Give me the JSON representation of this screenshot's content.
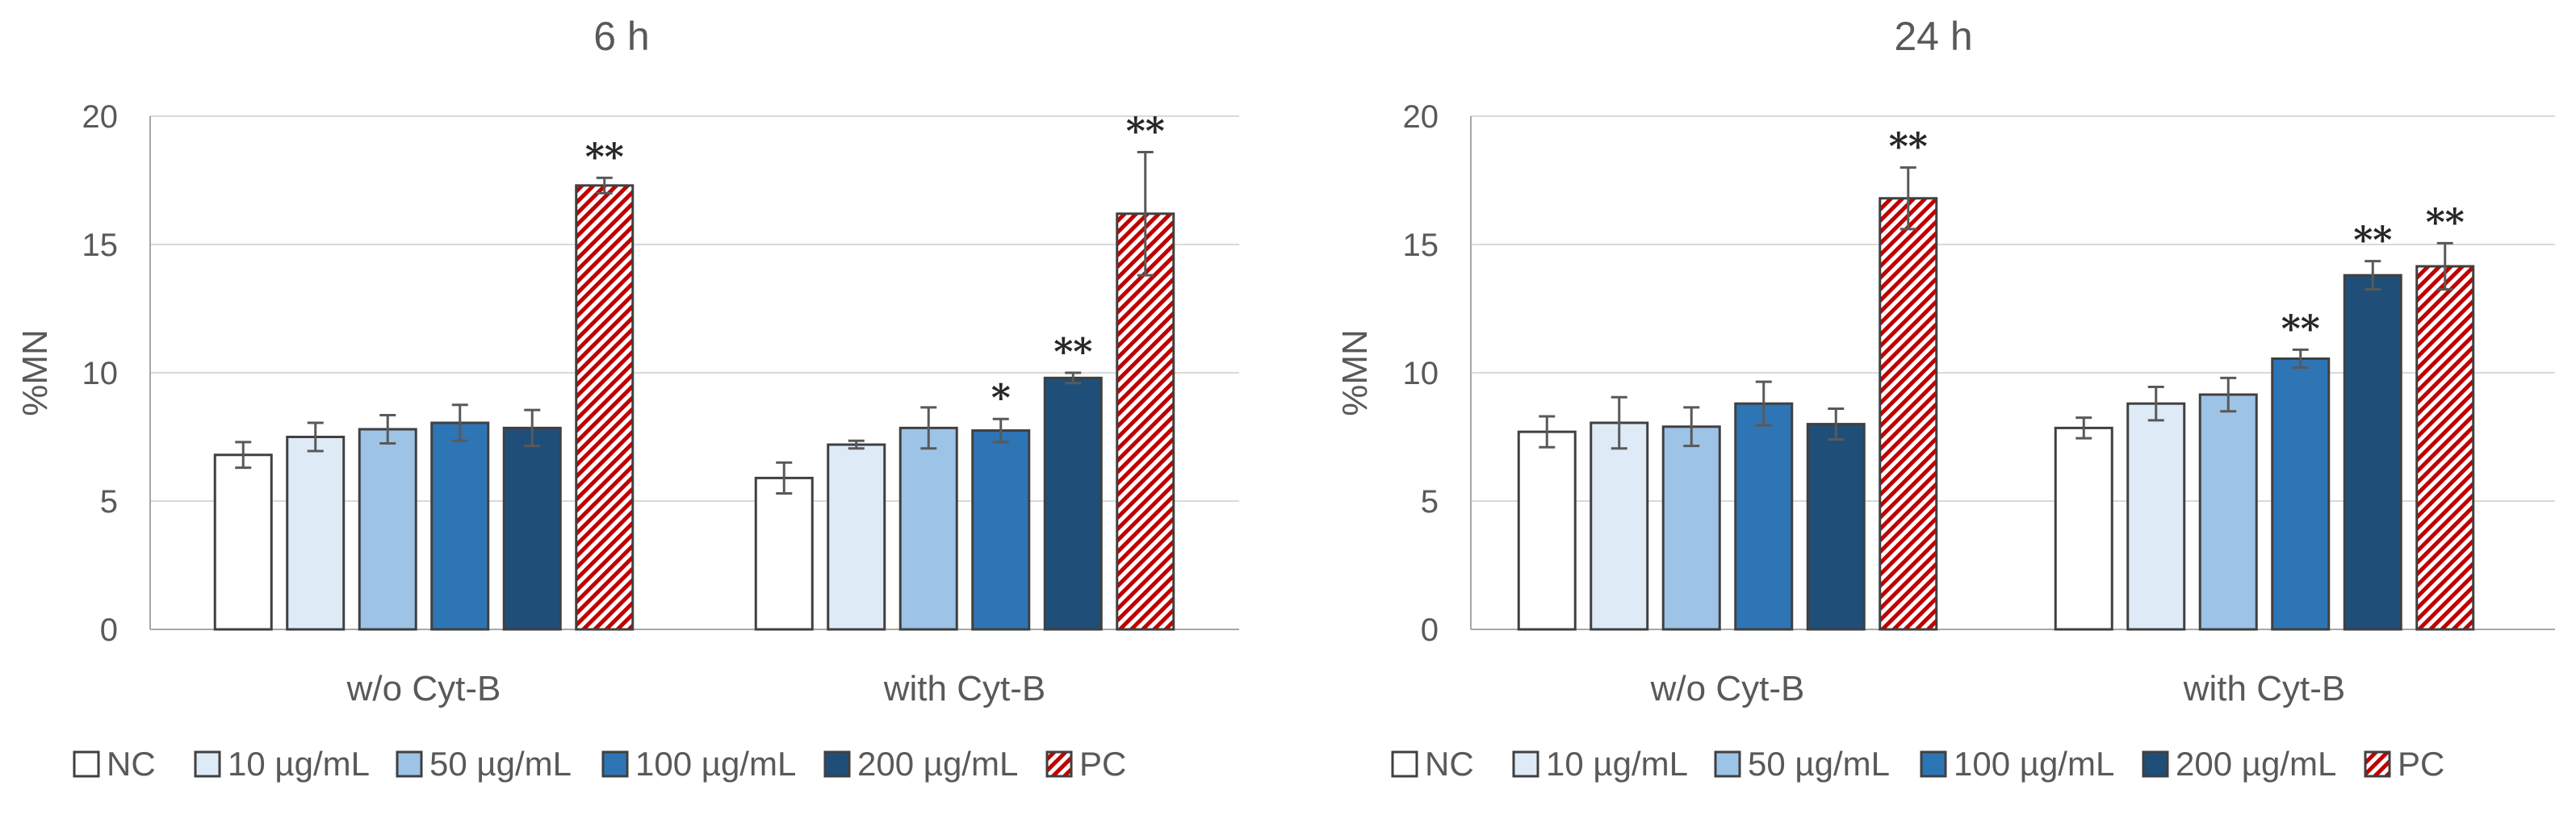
{
  "colors": {
    "NC": "#ffffff",
    "10 µg/mL": "#deebf7",
    "50 µg/mL": "#9dc3e6",
    "100 µg/mL": "#2e75b6",
    "200 µg/mL": "#1f4e79",
    "PC": "#c00000"
  },
  "chart_data": [
    {
      "type": "bar",
      "title": "6 h",
      "ylabel": "%MN",
      "xlabel": "",
      "ylim": [
        0,
        20
      ],
      "yticks": [
        0,
        5,
        10,
        15,
        20
      ],
      "grid": true,
      "legend_position": "bottom",
      "categories": [
        "w/o Cyt-B",
        "with Cyt-B"
      ],
      "series": [
        {
          "name": "NC",
          "values": [
            6.8,
            5.9
          ],
          "errors": [
            0.5,
            0.6
          ],
          "sig": [
            "",
            ""
          ]
        },
        {
          "name": "10 µg/mL",
          "values": [
            7.5,
            7.2
          ],
          "errors": [
            0.55,
            0.15
          ],
          "sig": [
            "",
            ""
          ]
        },
        {
          "name": "50 µg/mL",
          "values": [
            7.8,
            7.85
          ],
          "errors": [
            0.55,
            0.8
          ],
          "sig": [
            "",
            ""
          ]
        },
        {
          "name": "100 µg/mL",
          "values": [
            8.05,
            7.75
          ],
          "errors": [
            0.7,
            0.45
          ],
          "sig": [
            "",
            "*"
          ]
        },
        {
          "name": "200 µg/mL",
          "values": [
            7.85,
            9.8
          ],
          "errors": [
            0.7,
            0.2
          ],
          "sig": [
            "",
            "**"
          ]
        },
        {
          "name": "PC",
          "values": [
            17.3,
            16.2
          ],
          "errors": [
            0.3,
            2.4
          ],
          "sig": [
            "**",
            "**"
          ]
        }
      ]
    },
    {
      "type": "bar",
      "title": "24 h",
      "ylabel": "%MN",
      "xlabel": "",
      "ylim": [
        0,
        20
      ],
      "yticks": [
        0,
        5,
        10,
        15,
        20
      ],
      "grid": true,
      "legend_position": "bottom",
      "categories": [
        "w/o Cyt-B",
        "with Cyt-B"
      ],
      "series": [
        {
          "name": "NC",
          "values": [
            7.7,
            7.85
          ],
          "errors": [
            0.6,
            0.4
          ],
          "sig": [
            "",
            ""
          ]
        },
        {
          "name": "10 µg/mL",
          "values": [
            8.05,
            8.8
          ],
          "errors": [
            1.0,
            0.65
          ],
          "sig": [
            "",
            ""
          ]
        },
        {
          "name": "50 µg/mL",
          "values": [
            7.9,
            9.15
          ],
          "errors": [
            0.75,
            0.65
          ],
          "sig": [
            "",
            ""
          ]
        },
        {
          "name": "100 µg/mL",
          "values": [
            8.8,
            10.55
          ],
          "errors": [
            0.85,
            0.35
          ],
          "sig": [
            "",
            "**"
          ]
        },
        {
          "name": "200 µg/mL",
          "values": [
            8.0,
            13.8
          ],
          "errors": [
            0.6,
            0.55
          ],
          "sig": [
            "",
            "**"
          ]
        },
        {
          "name": "PC",
          "values": [
            16.8,
            14.15
          ],
          "errors": [
            1.2,
            0.9
          ],
          "sig": [
            "**",
            "**"
          ]
        }
      ]
    }
  ]
}
